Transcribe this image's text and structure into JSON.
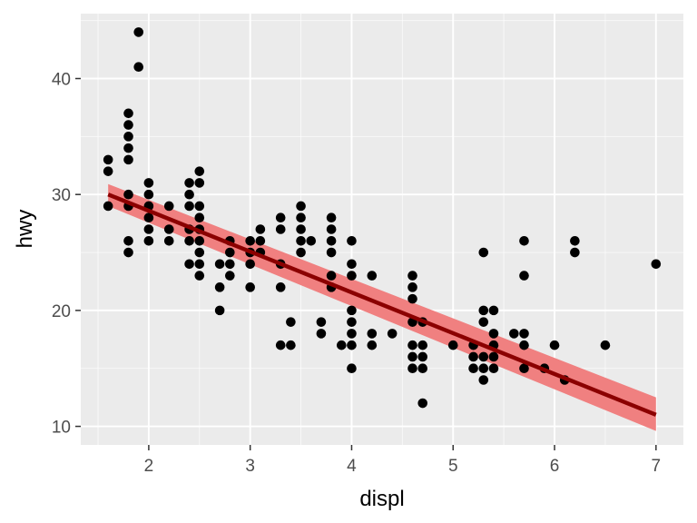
{
  "chart_data": {
    "type": "scatter",
    "title": "",
    "xlabel": "displ",
    "ylabel": "hwy",
    "xlim": [
      1.33,
      7.27
    ],
    "ylim": [
      8.4,
      45.6
    ],
    "x_ticks": [
      2,
      3,
      4,
      5,
      6,
      7
    ],
    "y_ticks": [
      10,
      20,
      30,
      40
    ],
    "grid": true,
    "legend": "none",
    "colors": {
      "panel_background": "#ebebeb",
      "grid_major": "#ffffff",
      "points": "#000000",
      "fit_line": "#8b0000",
      "confidence_band": "#f08080"
    },
    "fit": {
      "method": "lm",
      "x_range": [
        1.6,
        7.0
      ],
      "y_at_start": 30.0,
      "y_at_end": 11.0,
      "band_at_start": [
        29.0,
        30.9
      ],
      "band_at_end": [
        9.6,
        12.5
      ]
    },
    "points": [
      [
        1.6,
        33
      ],
      [
        1.6,
        32
      ],
      [
        1.6,
        29
      ],
      [
        1.8,
        37
      ],
      [
        1.8,
        36
      ],
      [
        1.8,
        35
      ],
      [
        1.8,
        34
      ],
      [
        1.8,
        33
      ],
      [
        1.8,
        30
      ],
      [
        1.8,
        29
      ],
      [
        1.8,
        26
      ],
      [
        1.8,
        25
      ],
      [
        1.9,
        44
      ],
      [
        1.9,
        41
      ],
      [
        2.0,
        31
      ],
      [
        2.0,
        30
      ],
      [
        2.0,
        29
      ],
      [
        2.0,
        28
      ],
      [
        2.0,
        27
      ],
      [
        2.0,
        26
      ],
      [
        2.2,
        29
      ],
      [
        2.2,
        27
      ],
      [
        2.2,
        26
      ],
      [
        2.4,
        31
      ],
      [
        2.4,
        30
      ],
      [
        2.4,
        29
      ],
      [
        2.4,
        27
      ],
      [
        2.4,
        26
      ],
      [
        2.4,
        24
      ],
      [
        2.5,
        32
      ],
      [
        2.5,
        31
      ],
      [
        2.5,
        29
      ],
      [
        2.5,
        28
      ],
      [
        2.5,
        27
      ],
      [
        2.5,
        26
      ],
      [
        2.5,
        25
      ],
      [
        2.5,
        24
      ],
      [
        2.5,
        23
      ],
      [
        2.7,
        24
      ],
      [
        2.7,
        22
      ],
      [
        2.7,
        20
      ],
      [
        2.8,
        26
      ],
      [
        2.8,
        25
      ],
      [
        2.8,
        24
      ],
      [
        2.8,
        23
      ],
      [
        3.0,
        26
      ],
      [
        3.0,
        25
      ],
      [
        3.0,
        24
      ],
      [
        3.0,
        22
      ],
      [
        3.1,
        27
      ],
      [
        3.1,
        26
      ],
      [
        3.1,
        25
      ],
      [
        3.3,
        28
      ],
      [
        3.3,
        27
      ],
      [
        3.3,
        24
      ],
      [
        3.3,
        22
      ],
      [
        3.3,
        17
      ],
      [
        3.4,
        19
      ],
      [
        3.4,
        17
      ],
      [
        3.5,
        29
      ],
      [
        3.5,
        28
      ],
      [
        3.5,
        27
      ],
      [
        3.5,
        26
      ],
      [
        3.5,
        25
      ],
      [
        3.6,
        26
      ],
      [
        3.7,
        19
      ],
      [
        3.7,
        18
      ],
      [
        3.8,
        28
      ],
      [
        3.8,
        27
      ],
      [
        3.8,
        26
      ],
      [
        3.8,
        25
      ],
      [
        3.8,
        23
      ],
      [
        3.8,
        22
      ],
      [
        3.9,
        17
      ],
      [
        4.0,
        26
      ],
      [
        4.0,
        24
      ],
      [
        4.0,
        23
      ],
      [
        4.0,
        20
      ],
      [
        4.0,
        19
      ],
      [
        4.0,
        18
      ],
      [
        4.0,
        17
      ],
      [
        4.0,
        15
      ],
      [
        4.2,
        23
      ],
      [
        4.2,
        18
      ],
      [
        4.2,
        17
      ],
      [
        4.4,
        18
      ],
      [
        4.6,
        23
      ],
      [
        4.6,
        22
      ],
      [
        4.6,
        21
      ],
      [
        4.6,
        19
      ],
      [
        4.6,
        17
      ],
      [
        4.6,
        16
      ],
      [
        4.6,
        15
      ],
      [
        4.7,
        19
      ],
      [
        4.7,
        17
      ],
      [
        4.7,
        16
      ],
      [
        4.7,
        15
      ],
      [
        4.7,
        12
      ],
      [
        5.0,
        17
      ],
      [
        5.2,
        17
      ],
      [
        5.2,
        16
      ],
      [
        5.2,
        15
      ],
      [
        5.3,
        25
      ],
      [
        5.3,
        20
      ],
      [
        5.3,
        19
      ],
      [
        5.3,
        16
      ],
      [
        5.3,
        15
      ],
      [
        5.3,
        14
      ],
      [
        5.4,
        20
      ],
      [
        5.4,
        18
      ],
      [
        5.4,
        17
      ],
      [
        5.4,
        16
      ],
      [
        5.4,
        15
      ],
      [
        5.6,
        18
      ],
      [
        5.7,
        26
      ],
      [
        5.7,
        23
      ],
      [
        5.7,
        18
      ],
      [
        5.7,
        17
      ],
      [
        5.7,
        15
      ],
      [
        5.9,
        15
      ],
      [
        6.0,
        17
      ],
      [
        6.1,
        14
      ],
      [
        6.2,
        26
      ],
      [
        6.2,
        25
      ],
      [
        6.5,
        17
      ],
      [
        7.0,
        24
      ]
    ]
  }
}
